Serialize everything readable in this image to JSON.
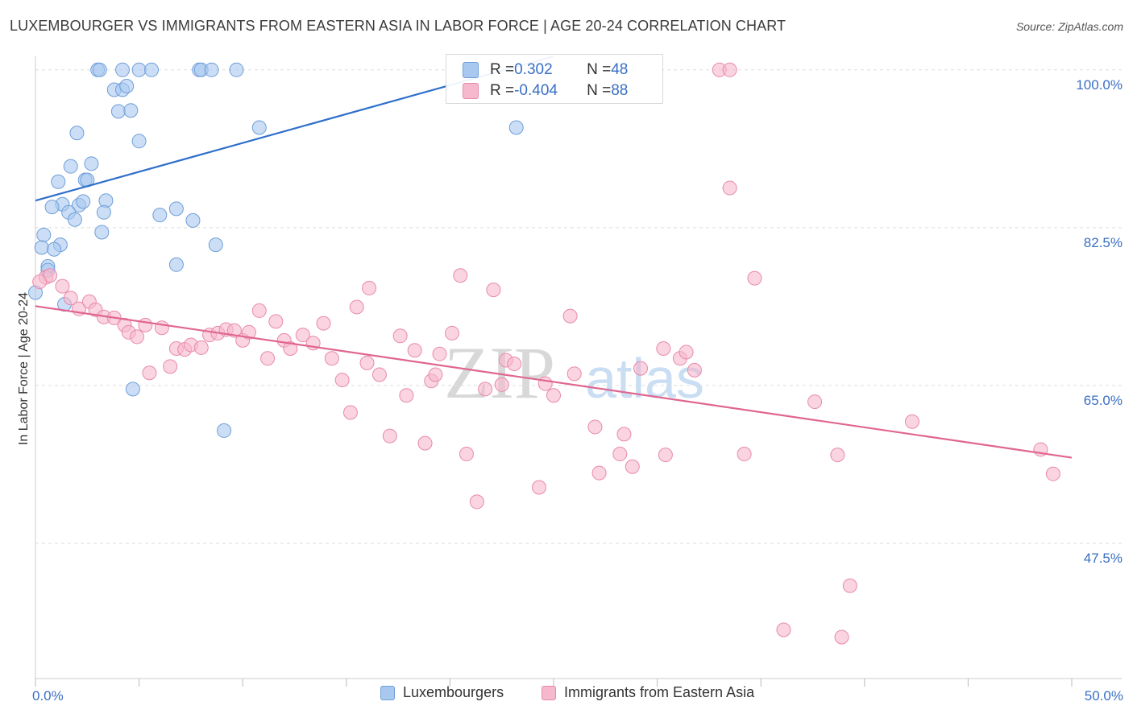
{
  "title": "LUXEMBOURGER VS IMMIGRANTS FROM EASTERN ASIA IN LABOR FORCE | AGE 20-24 CORRELATION CHART",
  "source": "Source: ZipAtlas.com",
  "watermark": {
    "zip": "ZIP",
    "atlas": "atlas"
  },
  "colors": {
    "blue_fill": "#a8c8f0",
    "blue_stroke": "#6f9fd8",
    "blue_line": "#2f6fcb",
    "pink_fill": "#f6b8cd",
    "pink_stroke": "#e88aab",
    "pink_line": "#e0668f",
    "axis_label_color": "#3a6fc4",
    "grid": "#dddddd"
  },
  "correlation_box": {
    "rows": [
      {
        "r_label": "R = ",
        "r_value": "0.302",
        "n_label": "N = ",
        "n_value": "48",
        "series": "blue"
      },
      {
        "r_label": "R = ",
        "r_value": "-0.404",
        "n_label": "N = ",
        "n_value": "88",
        "series": "pink"
      }
    ]
  },
  "legend": {
    "items": [
      {
        "label": "Luxembourgers",
        "series": "blue"
      },
      {
        "label": "Immigrants from Eastern Asia",
        "series": "pink"
      }
    ]
  },
  "chart_data": {
    "type": "scatter",
    "xlabel": "",
    "ylabel": "In Labor Force | Age 20-24",
    "xlim": [
      0,
      50
    ],
    "ylim": [
      32.5,
      101.5
    ],
    "x_tick_labels": [
      {
        "value": 0,
        "label": "0.0%"
      },
      {
        "value": 50,
        "label": "50.0%"
      }
    ],
    "y_tick_labels": [
      {
        "value": 100,
        "label": "100.0%"
      },
      {
        "value": 82.5,
        "label": "82.5%"
      },
      {
        "value": 65,
        "label": "65.0%"
      },
      {
        "value": 47.5,
        "label": "47.5%"
      }
    ],
    "y_gridlines": [
      100,
      82.5,
      65,
      47.5
    ],
    "grid": true,
    "legend_position": "bottom-center",
    "series": [
      {
        "name": "Luxembourgers",
        "color": "blue",
        "trend": {
          "x": [
            0,
            25
          ],
          "y": [
            85.5,
            101.5
          ]
        },
        "points": [
          [
            3.0,
            100.0
          ],
          [
            3.1,
            100.0
          ],
          [
            4.2,
            100.0
          ],
          [
            5.0,
            100.0
          ],
          [
            5.6,
            100.0
          ],
          [
            7.9,
            100.0
          ],
          [
            8.0,
            100.0
          ],
          [
            8.5,
            100.0
          ],
          [
            9.7,
            100.0
          ],
          [
            24.5,
            100.0
          ],
          [
            3.8,
            97.8
          ],
          [
            4.2,
            97.8
          ],
          [
            4.4,
            98.2
          ],
          [
            4.0,
            95.4
          ],
          [
            4.6,
            95.5
          ],
          [
            2.0,
            93.0
          ],
          [
            5.0,
            92.1
          ],
          [
            10.8,
            93.6
          ],
          [
            23.2,
            93.6
          ],
          [
            1.7,
            89.3
          ],
          [
            2.7,
            89.6
          ],
          [
            1.1,
            87.6
          ],
          [
            2.4,
            87.8
          ],
          [
            2.5,
            87.8
          ],
          [
            3.4,
            85.5
          ],
          [
            1.3,
            85.1
          ],
          [
            2.1,
            85.0
          ],
          [
            0.8,
            84.8
          ],
          [
            6.8,
            84.6
          ],
          [
            2.3,
            85.4
          ],
          [
            3.3,
            84.2
          ],
          [
            1.6,
            84.2
          ],
          [
            1.9,
            83.4
          ],
          [
            6.0,
            83.9
          ],
          [
            7.6,
            83.3
          ],
          [
            3.2,
            82.0
          ],
          [
            0.4,
            81.7
          ],
          [
            1.2,
            80.6
          ],
          [
            0.3,
            80.3
          ],
          [
            0.9,
            80.1
          ],
          [
            8.7,
            80.6
          ],
          [
            0.6,
            78.2
          ],
          [
            0.6,
            77.8
          ],
          [
            6.8,
            78.4
          ],
          [
            0.0,
            75.3
          ],
          [
            1.4,
            74.0
          ],
          [
            4.7,
            64.6
          ],
          [
            9.1,
            60.0
          ]
        ]
      },
      {
        "name": "Immigrants from Eastern Asia",
        "color": "pink",
        "trend": {
          "x": [
            0,
            50
          ],
          "y": [
            73.8,
            57.0
          ]
        },
        "points": [
          [
            0.5,
            77.0
          ],
          [
            0.7,
            77.2
          ],
          [
            1.3,
            76.0
          ],
          [
            1.7,
            74.7
          ],
          [
            2.1,
            73.5
          ],
          [
            2.6,
            74.3
          ],
          [
            2.9,
            73.4
          ],
          [
            3.3,
            72.6
          ],
          [
            3.8,
            72.5
          ],
          [
            4.3,
            71.7
          ],
          [
            4.5,
            70.9
          ],
          [
            4.9,
            70.4
          ],
          [
            5.3,
            71.7
          ],
          [
            5.5,
            66.4
          ],
          [
            6.1,
            71.4
          ],
          [
            6.5,
            67.1
          ],
          [
            6.8,
            69.1
          ],
          [
            7.2,
            69.0
          ],
          [
            7.5,
            69.5
          ],
          [
            8.0,
            69.2
          ],
          [
            8.4,
            70.6
          ],
          [
            8.8,
            70.8
          ],
          [
            9.2,
            71.2
          ],
          [
            9.6,
            71.1
          ],
          [
            10.0,
            70.0
          ],
          [
            10.3,
            70.9
          ],
          [
            10.8,
            73.3
          ],
          [
            11.2,
            68.0
          ],
          [
            11.6,
            72.1
          ],
          [
            12.0,
            70.0
          ],
          [
            12.3,
            69.1
          ],
          [
            12.9,
            70.6
          ],
          [
            13.4,
            69.7
          ],
          [
            13.9,
            71.9
          ],
          [
            14.3,
            68.0
          ],
          [
            14.8,
            65.6
          ],
          [
            15.2,
            62.0
          ],
          [
            15.5,
            73.7
          ],
          [
            16.0,
            67.5
          ],
          [
            16.1,
            75.8
          ],
          [
            16.6,
            66.2
          ],
          [
            17.1,
            59.4
          ],
          [
            17.6,
            70.5
          ],
          [
            17.9,
            63.9
          ],
          [
            18.3,
            68.9
          ],
          [
            18.8,
            58.6
          ],
          [
            19.1,
            65.5
          ],
          [
            19.3,
            66.2
          ],
          [
            19.5,
            68.5
          ],
          [
            20.1,
            70.8
          ],
          [
            20.5,
            77.2
          ],
          [
            20.8,
            57.4
          ],
          [
            21.3,
            52.1
          ],
          [
            21.7,
            64.6
          ],
          [
            22.1,
            75.6
          ],
          [
            22.5,
            65.1
          ],
          [
            22.7,
            67.8
          ],
          [
            23.1,
            67.4
          ],
          [
            24.3,
            53.7
          ],
          [
            24.6,
            65.2
          ],
          [
            25.0,
            63.9
          ],
          [
            25.8,
            72.7
          ],
          [
            26.0,
            66.3
          ],
          [
            27.0,
            60.4
          ],
          [
            27.2,
            55.3
          ],
          [
            28.2,
            57.4
          ],
          [
            28.4,
            59.6
          ],
          [
            28.8,
            56.0
          ],
          [
            29.2,
            66.9
          ],
          [
            30.4,
            57.3
          ],
          [
            30.3,
            69.1
          ],
          [
            31.1,
            68.0
          ],
          [
            31.4,
            68.7
          ],
          [
            31.8,
            66.7
          ],
          [
            33.0,
            100.0
          ],
          [
            33.5,
            100.0
          ],
          [
            33.5,
            86.9
          ],
          [
            34.2,
            57.4
          ],
          [
            34.7,
            76.9
          ],
          [
            36.1,
            37.9
          ],
          [
            37.6,
            63.2
          ],
          [
            38.7,
            57.3
          ],
          [
            38.9,
            37.1
          ],
          [
            39.3,
            42.8
          ],
          [
            42.3,
            61.0
          ],
          [
            48.5,
            57.9
          ],
          [
            49.1,
            55.2
          ],
          [
            0.2,
            76.5
          ]
        ]
      }
    ]
  }
}
